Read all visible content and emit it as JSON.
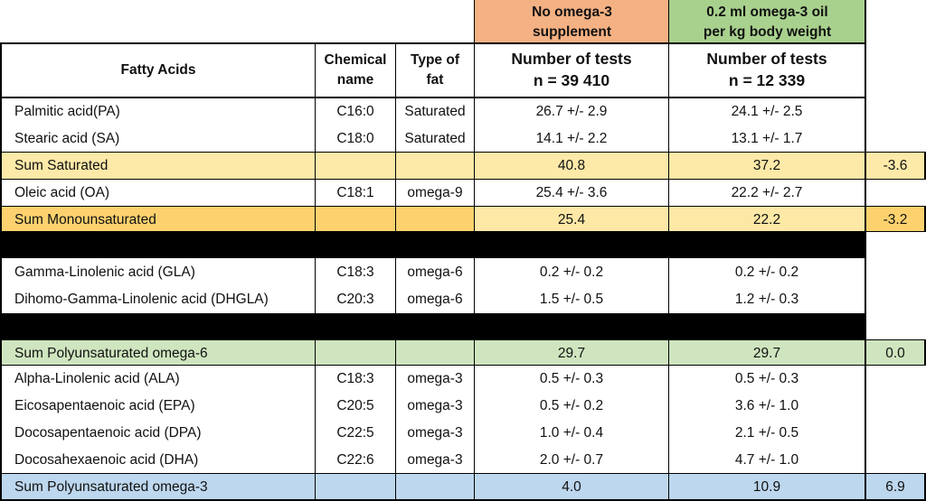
{
  "colors": {
    "no_omega_header": "#f4b183",
    "omega_header": "#a9d18e",
    "sum_saturated": "#fde9a8",
    "sum_mono": "#fdd26e",
    "sum_mono_light": "#fde8a6",
    "sum_omega6": "#cfe5bf",
    "sum_omega3": "#bdd7ee",
    "separator": "#000000"
  },
  "group_headers": {
    "no_omega_line1": "No omega-3",
    "no_omega_line2": "supplement",
    "omega_line1": "0.2 ml omega-3 oil",
    "omega_line2": "per kg body weight"
  },
  "columns": {
    "fatty_acids": "Fatty Acids",
    "chemical_line1": "Chemical",
    "chemical_line2": "name",
    "type_line1": "Type of",
    "type_line2": "fat",
    "no_omega_line1": "Number of tests",
    "no_omega_line2": "n = 39 410",
    "omega_line1": "Number of tests",
    "omega_line2": "n = 12 339"
  },
  "rows": [
    {
      "name": "Palmitic acid(PA)",
      "chem": "C16:0",
      "type": "Saturated",
      "no": "26.7 +/- 2.9",
      "om": "24.1 +/- 2.5",
      "diff": ""
    },
    {
      "name": "Stearic acid (SA)",
      "chem": "C18:0",
      "type": "Saturated",
      "no": "14.1 +/- 2.2",
      "om": "13.1 +/- 1.7",
      "diff": ""
    },
    {
      "name": "Sum Saturated",
      "chem": "",
      "type": "",
      "no": "40.8",
      "om": "37.2",
      "diff": "-3.6"
    },
    {
      "name": "Oleic acid (OA)",
      "chem": "C18:1",
      "type": "omega-9",
      "no": "25.4 +/- 3.6",
      "om": "22.2 +/- 2.7",
      "diff": ""
    },
    {
      "name": "Sum Monounsaturated",
      "chem": "",
      "type": "",
      "no": "25.4",
      "om": "22.2",
      "diff": "-3.2"
    },
    {
      "name": "Gamma-Linolenic acid (GLA)",
      "chem": "C18:3",
      "type": "omega-6",
      "no": "0.2 +/- 0.2",
      "om": "0.2 +/- 0.2",
      "diff": ""
    },
    {
      "name": "Dihomo-Gamma-Linolenic acid (DHGLA)",
      "chem": "C20:3",
      "type": "omega-6",
      "no": "1.5 +/- 0.5",
      "om": "1.2 +/- 0.3",
      "diff": ""
    },
    {
      "name": "Sum Polyunsaturated omega-6",
      "chem": "",
      "type": "",
      "no": "29.7",
      "om": "29.7",
      "diff": "0.0"
    },
    {
      "name": "Alpha-Linolenic acid (ALA)",
      "chem": "C18:3",
      "type": "omega-3",
      "no": "0.5 +/- 0.3",
      "om": "0.5 +/- 0.3",
      "diff": ""
    },
    {
      "name": "Eicosapentaenoic acid (EPA)",
      "chem": "C20:5",
      "type": "omega-3",
      "no": "0.5 +/- 0.2",
      "om": "3.6 +/- 1.0",
      "diff": ""
    },
    {
      "name": "Docosapentaenoic acid (DPA)",
      "chem": "C22:5",
      "type": "omega-3",
      "no": "1.0 +/- 0.4",
      "om": "2.1 +/- 0.5",
      "diff": ""
    },
    {
      "name": "Docosahexaenoic acid (DHA)",
      "chem": "C22:6",
      "type": "omega-3",
      "no": "2.0 +/- 0.7",
      "om": "4.7 +/- 1.0",
      "diff": ""
    },
    {
      "name": "Sum Polyunsaturated omega-3",
      "chem": "",
      "type": "",
      "no": "4.0",
      "om": "10.9",
      "diff": "6.9"
    }
  ]
}
